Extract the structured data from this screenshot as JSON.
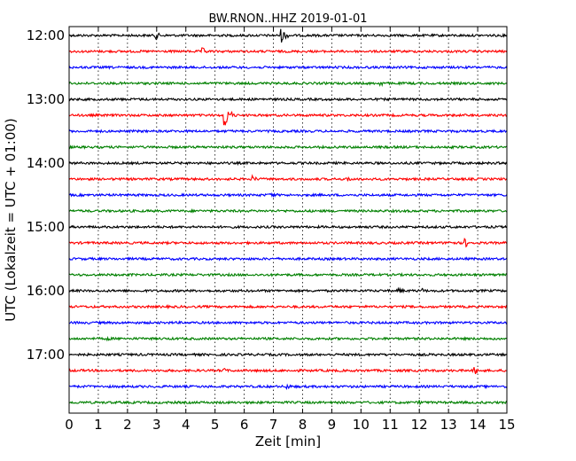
{
  "chart_data": {
    "type": "line",
    "title": "BW.RNON..HHZ 2019-01-01",
    "xlabel": "Zeit  [min]",
    "ylabel": "UTC (Lokalzeit = UTC + 01:00)",
    "xlim": [
      0,
      15
    ],
    "x_ticks": [
      "0",
      "1",
      "2",
      "3",
      "4",
      "5",
      "6",
      "7",
      "8",
      "9",
      "10",
      "11",
      "12",
      "13",
      "14",
      "15"
    ],
    "y_ticks": [
      "12:00",
      "13:00",
      "14:00",
      "15:00",
      "16:00",
      "17:00"
    ],
    "vertical_gridlines": "dotted",
    "trace_interval_min": 15,
    "traces": [
      {
        "start": "12:00",
        "color": "#000000",
        "events": [
          {
            "t": 3.0,
            "amp": 4
          },
          {
            "t": 7.3,
            "amp": 8
          }
        ]
      },
      {
        "start": "12:15",
        "color": "#ff0000",
        "events": [
          {
            "t": 4.6,
            "amp": 4
          }
        ]
      },
      {
        "start": "12:30",
        "color": "#0000ff",
        "events": []
      },
      {
        "start": "12:45",
        "color": "#008000",
        "events": [
          {
            "t": 10.7,
            "amp": 3
          }
        ]
      },
      {
        "start": "13:00",
        "color": "#000000",
        "events": []
      },
      {
        "start": "13:15",
        "color": "#ff0000",
        "events": [
          {
            "t": 5.35,
            "amp": 15
          }
        ]
      },
      {
        "start": "13:30",
        "color": "#0000ff",
        "events": []
      },
      {
        "start": "13:45",
        "color": "#008000",
        "events": []
      },
      {
        "start": "14:00",
        "color": "#000000",
        "events": []
      },
      {
        "start": "14:15",
        "color": "#ff0000",
        "events": [
          {
            "t": 6.3,
            "amp": 4
          },
          {
            "t": 9.6,
            "amp": 3
          }
        ]
      },
      {
        "start": "14:30",
        "color": "#0000ff",
        "events": [
          {
            "t": 6.9,
            "amp": 4
          }
        ]
      },
      {
        "start": "14:45",
        "color": "#008000",
        "events": []
      },
      {
        "start": "15:00",
        "color": "#000000",
        "events": []
      },
      {
        "start": "15:15",
        "color": "#ff0000",
        "events": [
          {
            "t": 13.0,
            "amp": 5
          },
          {
            "t": 13.6,
            "amp": 5
          }
        ]
      },
      {
        "start": "15:30",
        "color": "#0000ff",
        "events": []
      },
      {
        "start": "15:45",
        "color": "#008000",
        "events": []
      },
      {
        "start": "16:00",
        "color": "#000000",
        "events": [
          {
            "t": 11.3,
            "amp": 4
          },
          {
            "t": 12.1,
            "amp": 3
          }
        ]
      },
      {
        "start": "16:15",
        "color": "#ff0000",
        "events": []
      },
      {
        "start": "16:30",
        "color": "#0000ff",
        "events": []
      },
      {
        "start": "16:45",
        "color": "#008000",
        "events": [
          {
            "t": 1.3,
            "amp": 3
          }
        ]
      },
      {
        "start": "17:00",
        "color": "#000000",
        "events": []
      },
      {
        "start": "17:15",
        "color": "#ff0000",
        "events": [
          {
            "t": 5.3,
            "amp": 3
          },
          {
            "t": 13.9,
            "amp": 5
          }
        ]
      },
      {
        "start": "17:30",
        "color": "#0000ff",
        "events": [
          {
            "t": 7.5,
            "amp": 3
          }
        ]
      },
      {
        "start": "17:45",
        "color": "#008000",
        "events": [
          {
            "t": 12.0,
            "amp": 3
          }
        ]
      }
    ]
  }
}
